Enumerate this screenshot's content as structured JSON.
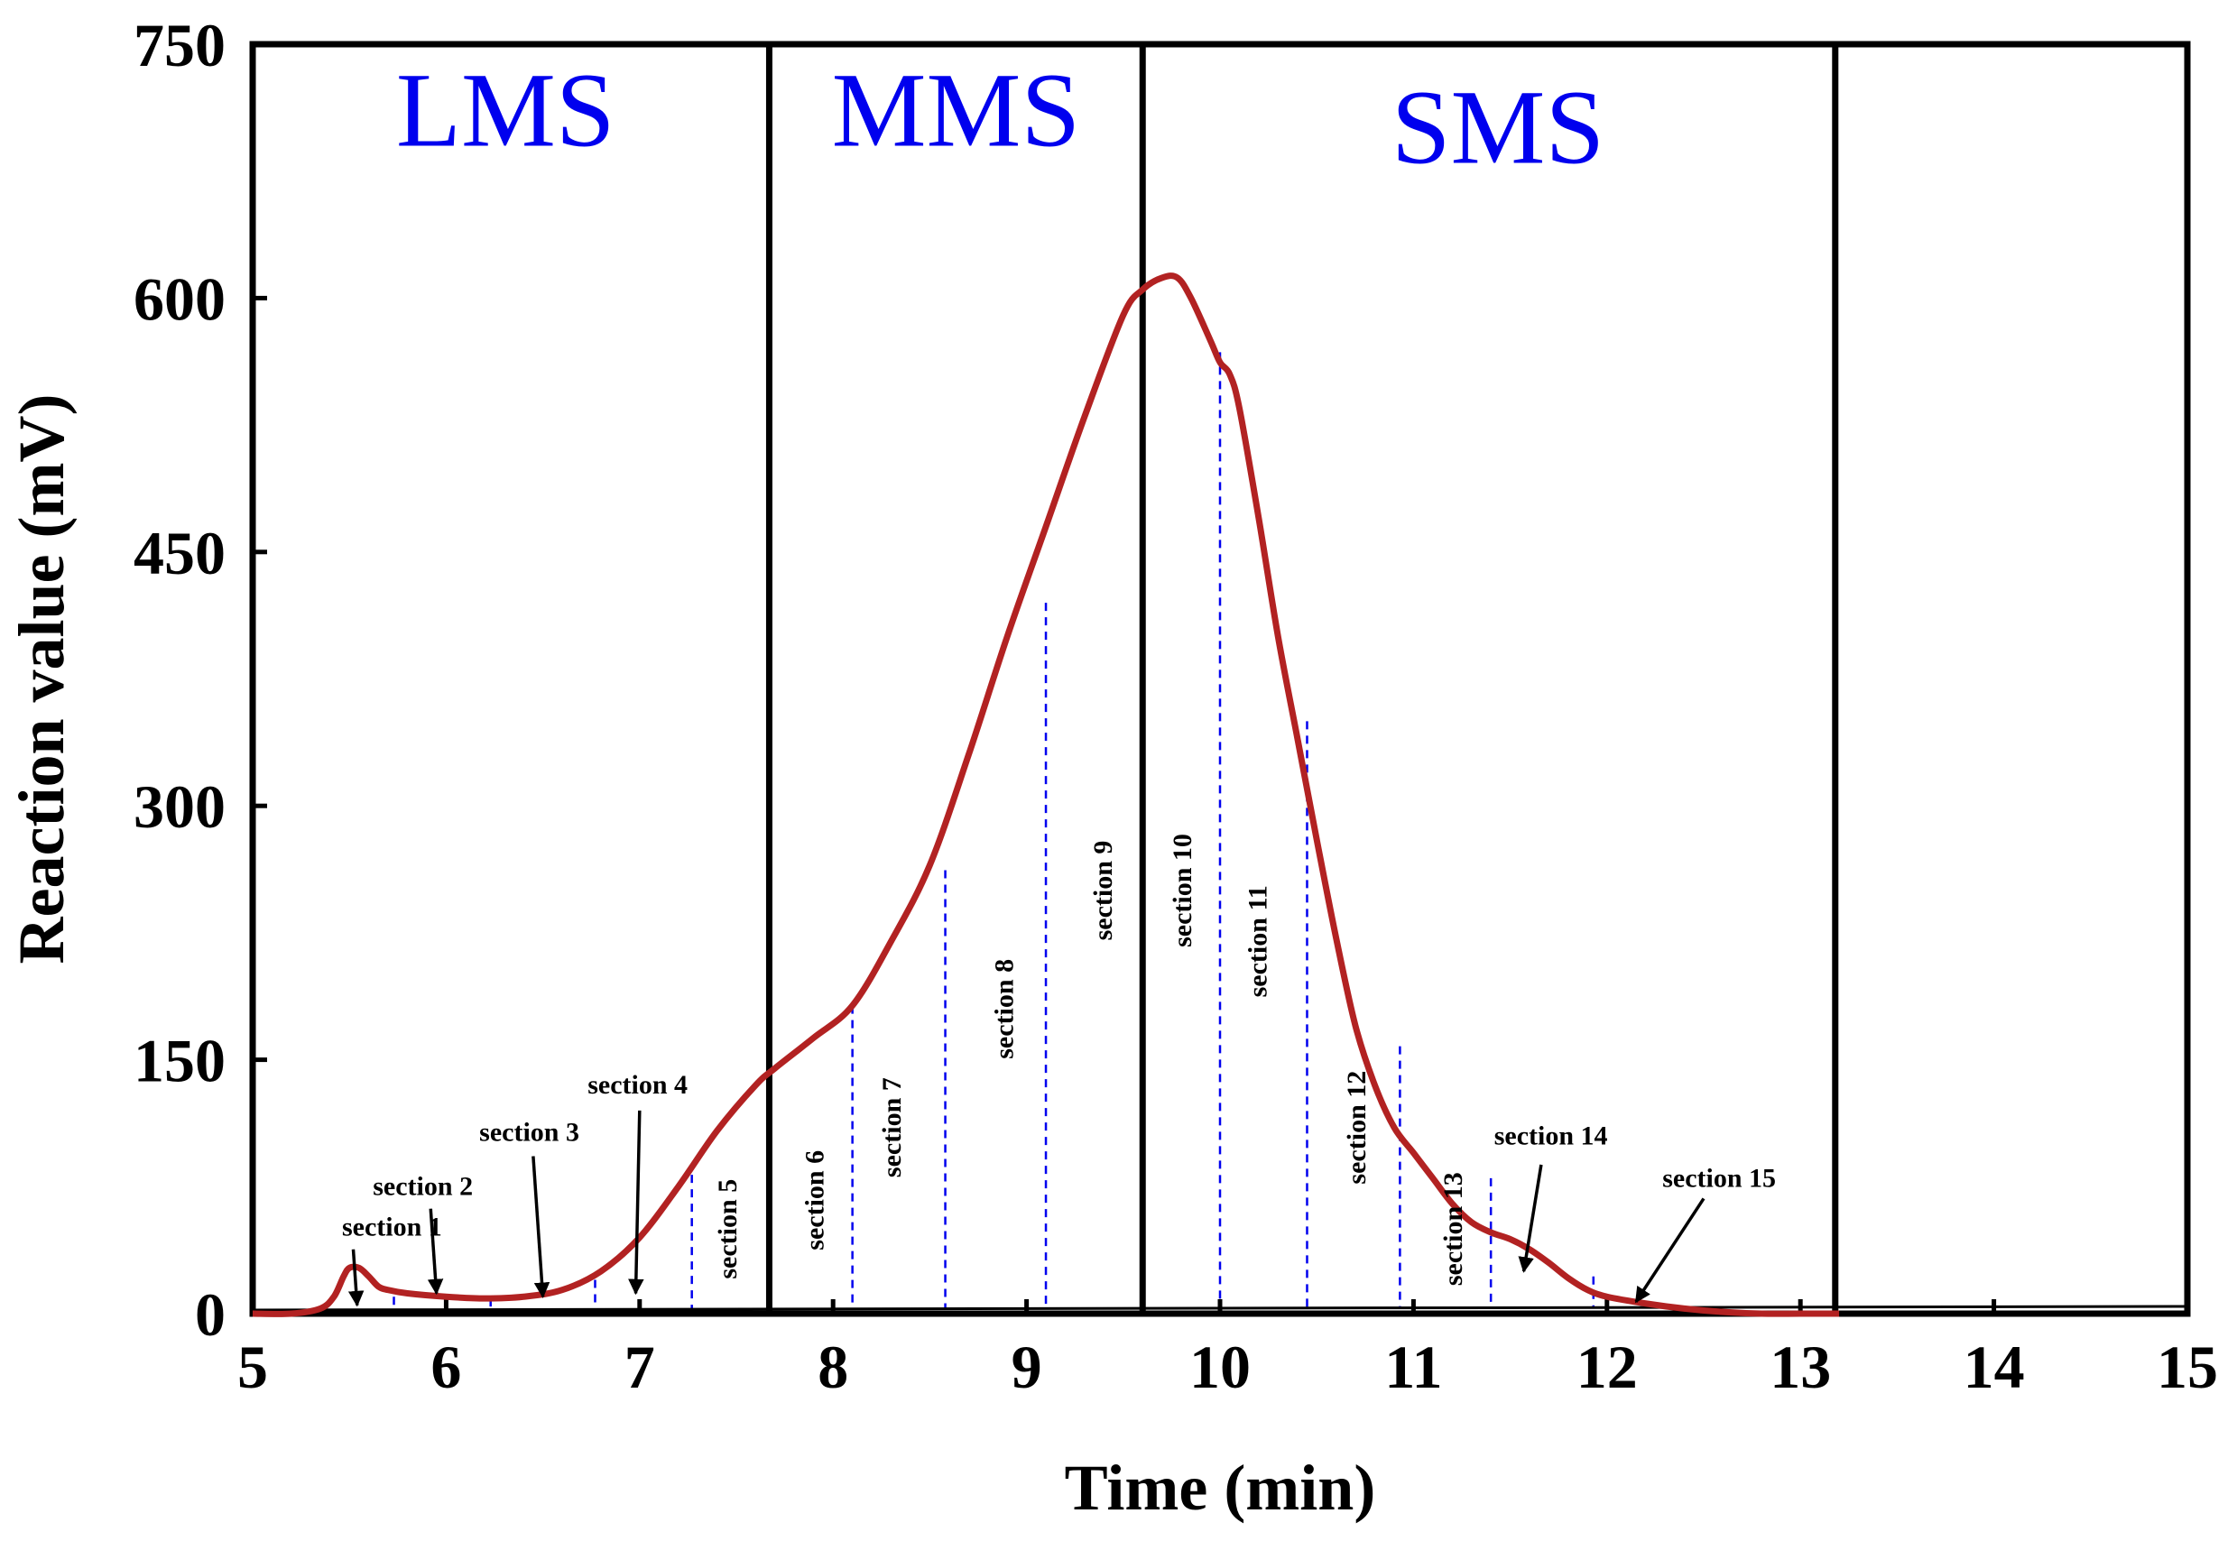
{
  "chart_data": {
    "type": "line",
    "title": "",
    "xlabel": "Time (min)",
    "ylabel": "Reaction value (mV)",
    "xlim": [
      5,
      15
    ],
    "ylim": [
      0,
      750
    ],
    "x_ticks": [
      5,
      6,
      7,
      8,
      9,
      10,
      11,
      12,
      13,
      14,
      15
    ],
    "y_ticks": [
      0,
      150,
      300,
      450,
      600,
      750
    ],
    "grid": false,
    "line_color": "#b22222",
    "region_label_color": "#0000ee",
    "section_line_color": "#0000ee",
    "regions": [
      {
        "label": "LMS",
        "x_start": 5,
        "x_end": 7.67
      },
      {
        "label": "MMS",
        "x_start": 7.67,
        "x_end": 9.6
      },
      {
        "label": "SMS",
        "x_start": 9.6,
        "x_end": 13.18
      }
    ],
    "boundaries": [
      7.67,
      9.6,
      13.18
    ],
    "series": [
      {
        "name": "",
        "x": [
          5.0,
          5.2,
          5.35,
          5.42,
          5.47,
          5.5,
          5.55,
          5.6,
          5.65,
          5.7,
          5.8,
          6.0,
          6.2,
          6.4,
          6.6,
          6.8,
          7.0,
          7.2,
          7.4,
          7.6,
          7.7,
          7.9,
          8.1,
          8.3,
          8.5,
          8.7,
          8.9,
          9.1,
          9.3,
          9.5,
          9.6,
          9.7,
          9.78,
          9.85,
          9.95,
          10.0,
          10.05,
          10.1,
          10.2,
          10.3,
          10.4,
          10.5,
          10.6,
          10.7,
          10.8,
          10.9,
          11.0,
          11.1,
          11.2,
          11.3,
          11.4,
          11.5,
          11.6,
          11.7,
          11.8,
          11.9,
          12.0,
          12.2,
          12.4,
          12.6,
          12.8,
          13.0,
          13.2
        ],
        "y": [
          0,
          0,
          3,
          10,
          22,
          27,
          27,
          22,
          16,
          14,
          12,
          10,
          9,
          10,
          14,
          25,
          45,
          75,
          108,
          135,
          145,
          163,
          182,
          220,
          265,
          330,
          400,
          465,
          530,
          590,
          605,
          612,
          612,
          600,
          575,
          562,
          555,
          535,
          470,
          400,
          340,
          280,
          222,
          170,
          135,
          110,
          95,
          80,
          65,
          54,
          48,
          44,
          38,
          30,
          21,
          14,
          10,
          6,
          3,
          1,
          0,
          0,
          0
        ]
      }
    ],
    "section_lines": [
      {
        "x": 5.73,
        "y_top": 10
      },
      {
        "x": 6.23,
        "y_top": 9
      },
      {
        "x": 6.77,
        "y_top": 20
      },
      {
        "x": 7.27,
        "y_top": 82
      },
      {
        "x": 8.1,
        "y_top": 182
      },
      {
        "x": 8.58,
        "y_top": 262
      },
      {
        "x": 9.1,
        "y_top": 420
      },
      {
        "x": 10.0,
        "y_top": 568
      },
      {
        "x": 10.45,
        "y_top": 350
      },
      {
        "x": 10.93,
        "y_top": 158
      },
      {
        "x": 11.4,
        "y_top": 80
      },
      {
        "x": 11.93,
        "y_top": 22
      }
    ],
    "annotations": [
      {
        "text": "section 1",
        "orient": "horizontal",
        "arrow": true
      },
      {
        "text": "section 2",
        "orient": "horizontal",
        "arrow": true
      },
      {
        "text": "section 3",
        "orient": "horizontal",
        "arrow": true
      },
      {
        "text": "section 4",
        "orient": "horizontal",
        "arrow": true
      },
      {
        "text": "section 5",
        "orient": "vertical"
      },
      {
        "text": "section 6",
        "orient": "vertical"
      },
      {
        "text": "section 7",
        "orient": "vertical"
      },
      {
        "text": "section 8",
        "orient": "vertical"
      },
      {
        "text": "section 9",
        "orient": "vertical"
      },
      {
        "text": "section 10",
        "orient": "vertical"
      },
      {
        "text": "section 11",
        "orient": "vertical"
      },
      {
        "text": "section 12",
        "orient": "vertical"
      },
      {
        "text": "section 13",
        "orient": "vertical"
      },
      {
        "text": "section 14",
        "orient": "horizontal",
        "arrow": true
      },
      {
        "text": "section 15",
        "orient": "horizontal",
        "arrow": true
      }
    ]
  }
}
